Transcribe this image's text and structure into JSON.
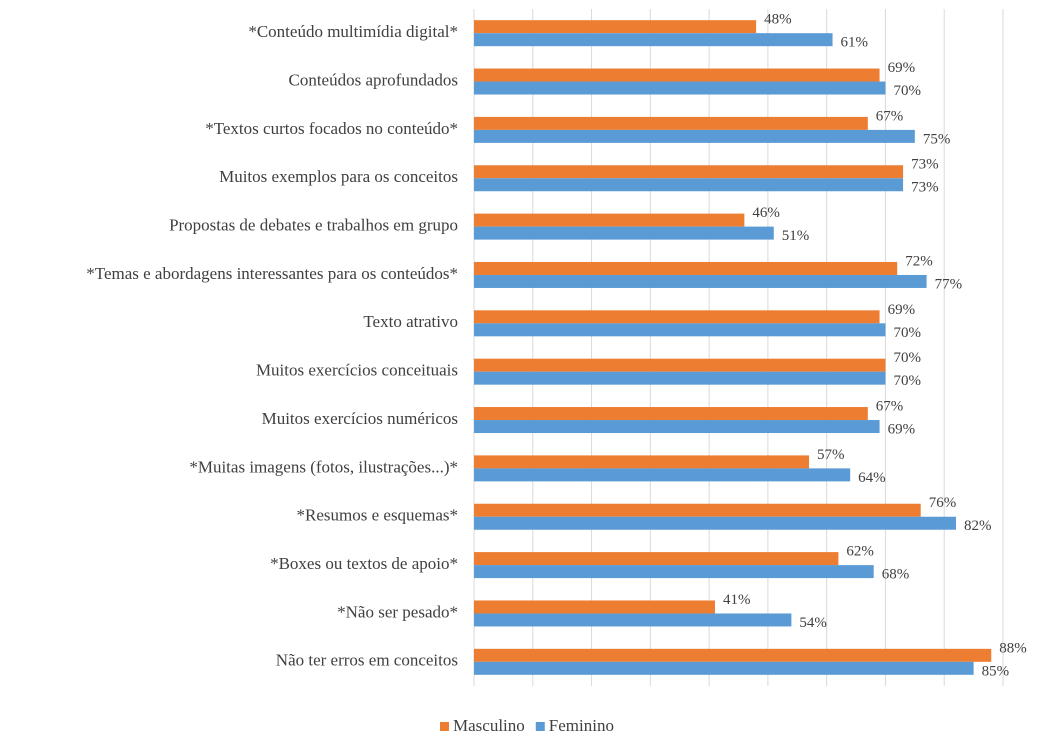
{
  "chart_data": {
    "type": "hbar",
    "categories": [
      "*Conteúdo multimídia digital*",
      "Conteúdos aprofundados",
      "*Textos curtos focados no conteúdo*",
      "Muitos exemplos para os conceitos",
      "Propostas de debates e trabalhos em grupo",
      "*Temas e abordagens interessantes para os conteúdos*",
      "Texto atrativo",
      "Muitos exercícios conceituais",
      "Muitos exercícios numéricos",
      "*Muitas imagens (fotos, ilustrações...)*",
      "*Resumos e esquemas*",
      "*Boxes ou textos de apoio*",
      "*Não ser pesado*",
      "Não ter erros em conceitos"
    ],
    "series": [
      {
        "name": "Masculino",
        "color": "#ed7d31",
        "values": [
          48,
          69,
          67,
          73,
          46,
          72,
          69,
          70,
          67,
          57,
          76,
          62,
          41,
          88
        ],
        "value_labels": [
          "48%",
          "69%",
          "67%",
          "73%",
          "46%",
          "72%",
          "69%",
          "70%",
          "67%",
          "57%",
          "76%",
          "62%",
          "41%",
          "88%"
        ]
      },
      {
        "name": "Feminino",
        "color": "#5b9bd5",
        "values": [
          61,
          70,
          75,
          73,
          51,
          77,
          70,
          70,
          69,
          64,
          82,
          68,
          54,
          85
        ],
        "value_labels": [
          "61%",
          "70%",
          "75%",
          "73%",
          "51%",
          "77%",
          "70%",
          "70%",
          "69%",
          "64%",
          "82%",
          "68%",
          "54%",
          "85%"
        ]
      }
    ],
    "xlim": [
      0,
      90
    ],
    "xticks": [
      0,
      10,
      20,
      30,
      40,
      50,
      60,
      70,
      80,
      90
    ],
    "grid": true,
    "legend": "bottom"
  }
}
